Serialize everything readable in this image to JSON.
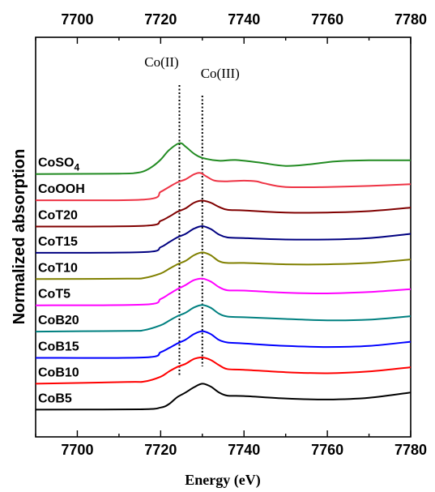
{
  "chart_data": {
    "type": "line",
    "title": "",
    "xlabel": "Energy (eV)",
    "ylabel": "Normalized absorption",
    "xlim": [
      7690,
      7780
    ],
    "x_ticks": [
      7700,
      7720,
      7740,
      7760,
      7780
    ],
    "grid": false,
    "legend": "inline labels at left of each curve",
    "annotations": [
      {
        "text": "Co(II)",
        "x": 7724.5
      },
      {
        "text": "Co(III)",
        "x": 7730
      }
    ],
    "series": [
      {
        "name": "CoB5",
        "color": "#000000",
        "offset": 0.0,
        "peak_x": 7730,
        "points": [
          [
            7690,
            0.06
          ],
          [
            7715,
            0.07
          ],
          [
            7720,
            0.12
          ],
          [
            7722,
            0.22
          ],
          [
            7724,
            0.42
          ],
          [
            7726,
            0.55
          ],
          [
            7728,
            0.7
          ],
          [
            7730,
            0.8
          ],
          [
            7732,
            0.72
          ],
          [
            7734,
            0.55
          ],
          [
            7736,
            0.46
          ],
          [
            7740,
            0.45
          ],
          [
            7750,
            0.38
          ],
          [
            7760,
            0.35
          ],
          [
            7770,
            0.4
          ],
          [
            7780,
            0.55
          ]
        ]
      },
      {
        "name": "CoB10",
        "color": "#ff0000",
        "offset": 0.75,
        "peak_x": 7730,
        "points": [
          [
            7690,
            0.05
          ],
          [
            7712,
            0.1
          ],
          [
            7716,
            0.11
          ],
          [
            7720,
            0.25
          ],
          [
            7722,
            0.4
          ],
          [
            7724,
            0.53
          ],
          [
            7726,
            0.62
          ],
          [
            7728,
            0.76
          ],
          [
            7730,
            0.8
          ],
          [
            7732,
            0.73
          ],
          [
            7734,
            0.58
          ],
          [
            7736,
            0.47
          ],
          [
            7740,
            0.45
          ],
          [
            7750,
            0.38
          ],
          [
            7760,
            0.35
          ],
          [
            7770,
            0.4
          ],
          [
            7780,
            0.52
          ]
        ]
      },
      {
        "name": "CoB15",
        "color": "#0000ff",
        "offset": 1.5,
        "peak_x": 7730,
        "points": [
          [
            7690,
            0.04
          ],
          [
            7716,
            0.05
          ],
          [
            7720,
            0.2
          ],
          [
            7722,
            0.32
          ],
          [
            7724,
            0.45
          ],
          [
            7726,
            0.56
          ],
          [
            7728,
            0.72
          ],
          [
            7730,
            0.8
          ],
          [
            7732,
            0.72
          ],
          [
            7734,
            0.55
          ],
          [
            7736,
            0.48
          ],
          [
            7740,
            0.45
          ],
          [
            7750,
            0.38
          ],
          [
            7760,
            0.35
          ],
          [
            7770,
            0.38
          ],
          [
            7780,
            0.5
          ]
        ]
      },
      {
        "name": "CoB20",
        "color": "#008080",
        "offset": 2.25,
        "peak_x": 7730,
        "points": [
          [
            7690,
            0.04
          ],
          [
            7712,
            0.06
          ],
          [
            7716,
            0.08
          ],
          [
            7720,
            0.22
          ],
          [
            7722,
            0.35
          ],
          [
            7724,
            0.48
          ],
          [
            7726,
            0.58
          ],
          [
            7728,
            0.73
          ],
          [
            7730,
            0.8
          ],
          [
            7732,
            0.72
          ],
          [
            7734,
            0.55
          ],
          [
            7736,
            0.47
          ],
          [
            7740,
            0.45
          ],
          [
            7750,
            0.4
          ],
          [
            7760,
            0.36
          ],
          [
            7770,
            0.38
          ],
          [
            7780,
            0.48
          ]
        ]
      },
      {
        "name": "CoT5",
        "color": "#ff00ff",
        "offset": 3.0,
        "peak_x": 7730,
        "points": [
          [
            7690,
            0.04
          ],
          [
            7716,
            0.06
          ],
          [
            7720,
            0.22
          ],
          [
            7722,
            0.36
          ],
          [
            7724,
            0.5
          ],
          [
            7726,
            0.62
          ],
          [
            7728,
            0.76
          ],
          [
            7730,
            0.8
          ],
          [
            7732,
            0.72
          ],
          [
            7734,
            0.56
          ],
          [
            7736,
            0.47
          ],
          [
            7740,
            0.46
          ],
          [
            7750,
            0.4
          ],
          [
            7760,
            0.38
          ],
          [
            7770,
            0.42
          ],
          [
            7780,
            0.5
          ]
        ]
      },
      {
        "name": "CoT10",
        "color": "#808000",
        "offset": 3.75,
        "peak_x": 7730,
        "points": [
          [
            7690,
            0.04
          ],
          [
            7712,
            0.05
          ],
          [
            7716,
            0.07
          ],
          [
            7720,
            0.2
          ],
          [
            7722,
            0.33
          ],
          [
            7724,
            0.46
          ],
          [
            7726,
            0.56
          ],
          [
            7728,
            0.72
          ],
          [
            7730,
            0.8
          ],
          [
            7732,
            0.72
          ],
          [
            7734,
            0.55
          ],
          [
            7736,
            0.5
          ],
          [
            7740,
            0.5
          ],
          [
            7750,
            0.46
          ],
          [
            7760,
            0.46
          ],
          [
            7770,
            0.5
          ],
          [
            7780,
            0.6
          ]
        ]
      },
      {
        "name": "CoT15",
        "color": "#000080",
        "offset": 4.5,
        "peak_x": 7730,
        "points": [
          [
            7690,
            0.04
          ],
          [
            7716,
            0.06
          ],
          [
            7720,
            0.2
          ],
          [
            7722,
            0.34
          ],
          [
            7724,
            0.48
          ],
          [
            7726,
            0.58
          ],
          [
            7728,
            0.73
          ],
          [
            7730,
            0.8
          ],
          [
            7732,
            0.72
          ],
          [
            7734,
            0.56
          ],
          [
            7736,
            0.48
          ],
          [
            7740,
            0.46
          ],
          [
            7750,
            0.42
          ],
          [
            7760,
            0.42
          ],
          [
            7770,
            0.46
          ],
          [
            7780,
            0.58
          ]
        ]
      },
      {
        "name": "CoT20",
        "color": "#800000",
        "offset": 5.25,
        "peak_x": 7730,
        "points": [
          [
            7690,
            0.04
          ],
          [
            7716,
            0.06
          ],
          [
            7720,
            0.2
          ],
          [
            7722,
            0.32
          ],
          [
            7724,
            0.46
          ],
          [
            7726,
            0.56
          ],
          [
            7728,
            0.72
          ],
          [
            7730,
            0.78
          ],
          [
            7732,
            0.72
          ],
          [
            7734,
            0.6
          ],
          [
            7736,
            0.52
          ],
          [
            7740,
            0.5
          ],
          [
            7750,
            0.44
          ],
          [
            7760,
            0.44
          ],
          [
            7770,
            0.48
          ],
          [
            7780,
            0.58
          ]
        ]
      },
      {
        "name": "CoOOH",
        "color": "#ee3344",
        "offset": 6.0,
        "peak_x": 7729.5,
        "points": [
          [
            7690,
            0.04
          ],
          [
            7716,
            0.06
          ],
          [
            7720,
            0.28
          ],
          [
            7722,
            0.42
          ],
          [
            7724,
            0.55
          ],
          [
            7726,
            0.64
          ],
          [
            7728,
            0.78
          ],
          [
            7729.5,
            0.82
          ],
          [
            7731,
            0.72
          ],
          [
            7733,
            0.6
          ],
          [
            7736,
            0.58
          ],
          [
            7740,
            0.6
          ],
          [
            7743,
            0.58
          ],
          [
            7745,
            0.52
          ],
          [
            7750,
            0.42
          ],
          [
            7760,
            0.42
          ],
          [
            7770,
            0.45
          ],
          [
            7780,
            0.5
          ]
        ]
      },
      {
        "name": "CoSO4",
        "color": "#228b22",
        "offset": 6.75,
        "peak_x": 7724.5,
        "points": [
          [
            7690,
            0.04
          ],
          [
            7710,
            0.05
          ],
          [
            7714,
            0.07
          ],
          [
            7716,
            0.12
          ],
          [
            7718,
            0.25
          ],
          [
            7720,
            0.45
          ],
          [
            7722,
            0.72
          ],
          [
            7724.5,
            0.92
          ],
          [
            7726,
            0.82
          ],
          [
            7728,
            0.62
          ],
          [
            7730,
            0.5
          ],
          [
            7734,
            0.42
          ],
          [
            7738,
            0.44
          ],
          [
            7744,
            0.36
          ],
          [
            7750,
            0.27
          ],
          [
            7756,
            0.32
          ],
          [
            7762,
            0.4
          ],
          [
            7770,
            0.43
          ],
          [
            7780,
            0.43
          ]
        ]
      }
    ]
  }
}
